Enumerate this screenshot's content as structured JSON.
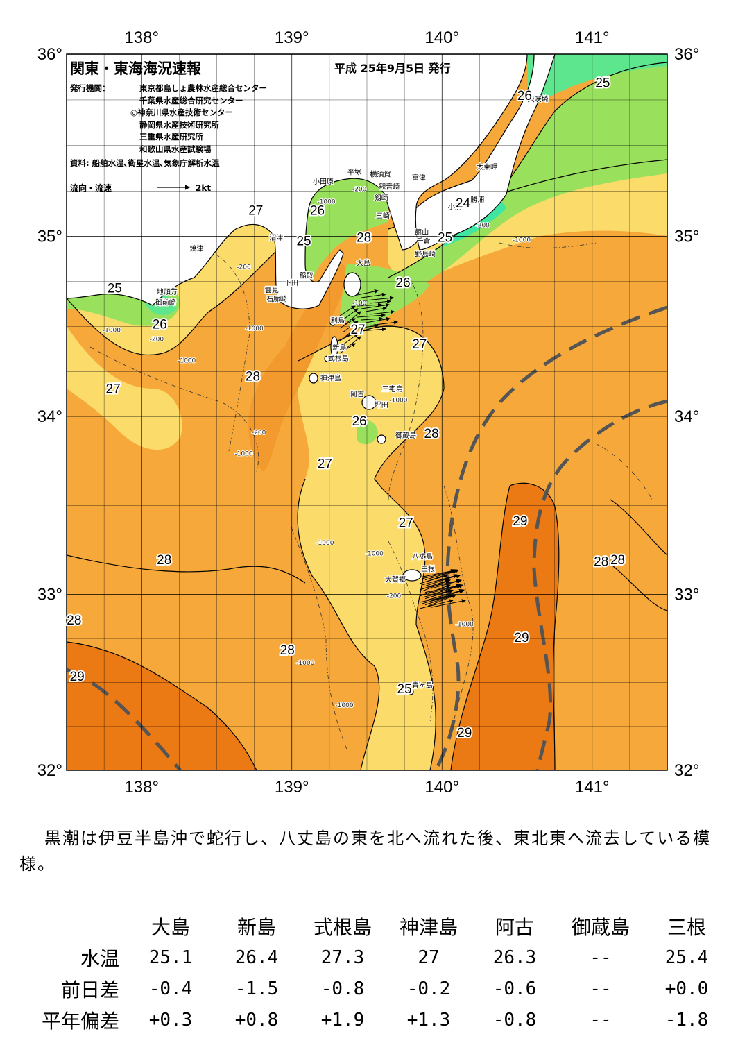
{
  "map": {
    "title": "関東・東海海況速報",
    "date": "平成 25年9月5日 発行",
    "issuers_label": "発行機関：",
    "issuers": [
      "東京都島しょ農林水産総合センター",
      "千葉県水産総合研究センター",
      "◎神奈川県水産技術センター",
      "静岡県水産技術研究所",
      "三重県水産研究所",
      "和歌山県水産試験場"
    ],
    "source": "資料: 船舶水温､衛星水温､気象庁解析水温",
    "legend_label": "流向・流速",
    "legend_scale": "2kt",
    "lon_ticks": [
      "138°",
      "139°",
      "140°",
      "141°"
    ],
    "lat_ticks": [
      "36°",
      "35°",
      "34°",
      "33°",
      "32°"
    ],
    "lon_range": [
      137.5,
      141.5
    ],
    "lat_range": [
      32.0,
      36.0
    ],
    "temp_colors": {
      "24": "#3fe6a2",
      "25": "#5ee68f",
      "26": "#99e05c",
      "27": "#fbdc6a",
      "28": "#f6a93a",
      "29": "#ec7a14",
      "land": "#ffffff",
      "kuroshio_axis": "#555555"
    },
    "isotherm_labels": [
      {
        "t": "25",
        "lon": 141.07,
        "lat": 35.82
      },
      {
        "t": "26",
        "lon": 140.55,
        "lat": 35.75
      },
      {
        "t": "24",
        "lon": 140.14,
        "lat": 35.16
      },
      {
        "t": "25",
        "lon": 140.02,
        "lat": 34.97
      },
      {
        "t": "28",
        "lon": 139.48,
        "lat": 34.97
      },
      {
        "t": "26",
        "lon": 139.74,
        "lat": 34.72
      },
      {
        "t": "27",
        "lon": 138.76,
        "lat": 35.12
      },
      {
        "t": "26",
        "lon": 139.17,
        "lat": 35.12
      },
      {
        "t": "25",
        "lon": 139.08,
        "lat": 34.95
      },
      {
        "t": "25",
        "lon": 137.82,
        "lat": 34.69
      },
      {
        "t": "26",
        "lon": 138.12,
        "lat": 34.49
      },
      {
        "t": "27",
        "lon": 139.44,
        "lat": 34.46
      },
      {
        "t": "27",
        "lon": 139.85,
        "lat": 34.38
      },
      {
        "t": "28",
        "lon": 138.74,
        "lat": 34.2
      },
      {
        "t": "27",
        "lon": 137.81,
        "lat": 34.13
      },
      {
        "t": "26",
        "lon": 139.45,
        "lat": 33.95
      },
      {
        "t": "28",
        "lon": 139.93,
        "lat": 33.88
      },
      {
        "t": "27",
        "lon": 139.22,
        "lat": 33.71
      },
      {
        "t": "27",
        "lon": 139.76,
        "lat": 33.38
      },
      {
        "t": "29",
        "lon": 140.52,
        "lat": 33.39
      },
      {
        "t": "28",
        "lon": 138.15,
        "lat": 33.17
      },
      {
        "t": "28",
        "lon": 141.06,
        "lat": 33.16
      },
      {
        "t": "28",
        "lon": 141.17,
        "lat": 33.17
      },
      {
        "t": "28",
        "lon": 137.55,
        "lat": 32.83
      },
      {
        "t": "29",
        "lon": 140.53,
        "lat": 32.73
      },
      {
        "t": "28",
        "lon": 138.97,
        "lat": 32.66
      },
      {
        "t": "29",
        "lon": 137.57,
        "lat": 32.51
      },
      {
        "t": "25",
        "lon": 139.75,
        "lat": 32.44
      },
      {
        "t": "29",
        "lon": 140.15,
        "lat": 32.19
      }
    ],
    "place_names": [
      {
        "name": "犬吠埼",
        "lon": 140.57,
        "lat": 35.74
      },
      {
        "name": "太東岬",
        "lon": 140.23,
        "lat": 35.37
      },
      {
        "name": "勝浦",
        "lon": 140.19,
        "lat": 35.19
      },
      {
        "name": "小湊",
        "lon": 140.04,
        "lat": 35.15
      },
      {
        "name": "富津",
        "lon": 139.8,
        "lat": 35.31
      },
      {
        "name": "横須賀",
        "lon": 139.52,
        "lat": 35.33
      },
      {
        "name": "観音崎",
        "lon": 139.58,
        "lat": 35.26
      },
      {
        "name": "剱崎",
        "lon": 139.55,
        "lat": 35.2
      },
      {
        "name": "三崎",
        "lon": 139.56,
        "lat": 35.1
      },
      {
        "name": "平塚",
        "lon": 139.37,
        "lat": 35.34
      },
      {
        "name": "小田原",
        "lon": 139.14,
        "lat": 35.29
      },
      {
        "name": "館山",
        "lon": 139.82,
        "lat": 35.01
      },
      {
        "name": "千倉",
        "lon": 139.83,
        "lat": 34.96
      },
      {
        "name": "野島崎",
        "lon": 139.82,
        "lat": 34.89
      },
      {
        "name": "沼津",
        "lon": 138.85,
        "lat": 34.98
      },
      {
        "name": "焼津",
        "lon": 138.32,
        "lat": 34.92
      },
      {
        "name": "稲取",
        "lon": 139.05,
        "lat": 34.77
      },
      {
        "name": "下田",
        "lon": 138.95,
        "lat": 34.73
      },
      {
        "name": "雲見",
        "lon": 138.82,
        "lat": 34.69
      },
      {
        "name": "石廊崎",
        "lon": 138.83,
        "lat": 34.64
      },
      {
        "name": "地頭方",
        "lon": 138.1,
        "lat": 34.68
      },
      {
        "name": "御前崎",
        "lon": 138.09,
        "lat": 34.62
      },
      {
        "name": "大島",
        "lon": 139.43,
        "lat": 34.84
      },
      {
        "name": "利島",
        "lon": 139.26,
        "lat": 34.52
      },
      {
        "name": "新島",
        "lon": 139.27,
        "lat": 34.37
      },
      {
        "name": "式根島",
        "lon": 139.24,
        "lat": 34.31
      },
      {
        "name": "神津島",
        "lon": 139.19,
        "lat": 34.2
      },
      {
        "name": "阿古",
        "lon": 139.39,
        "lat": 34.11
      },
      {
        "name": "三宅島",
        "lon": 139.6,
        "lat": 34.14
      },
      {
        "name": "坪田",
        "lon": 139.55,
        "lat": 34.05
      },
      {
        "name": "御蔵島",
        "lon": 139.69,
        "lat": 33.88
      },
      {
        "name": "八丈島",
        "lon": 139.8,
        "lat": 33.2
      },
      {
        "name": "三根",
        "lon": 139.86,
        "lat": 33.13
      },
      {
        "name": "大賀郷",
        "lon": 139.62,
        "lat": 33.07
      },
      {
        "name": "青ヶ島",
        "lon": 139.8,
        "lat": 32.47
      }
    ],
    "depth_labels": [
      {
        "t": "-200",
        "lon": 139.45,
        "lat": 35.25
      },
      {
        "t": "-1000",
        "lon": 139.23,
        "lat": 35.18
      },
      {
        "t": "-200",
        "lon": 140.27,
        "lat": 35.05
      },
      {
        "t": "-1000",
        "lon": 140.53,
        "lat": 34.97
      },
      {
        "t": "-200",
        "lon": 138.68,
        "lat": 34.82
      },
      {
        "t": "-200",
        "lon": 138.1,
        "lat": 34.42
      },
      {
        "t": "-1000",
        "lon": 137.8,
        "lat": 34.47
      },
      {
        "t": "-1000",
        "lon": 138.3,
        "lat": 34.3
      },
      {
        "t": "-1000",
        "lon": 138.75,
        "lat": 34.48
      },
      {
        "t": "-200",
        "lon": 138.78,
        "lat": 33.9
      },
      {
        "t": "-1000",
        "lon": 138.68,
        "lat": 33.78
      },
      {
        "t": "-1000",
        "lon": 139.71,
        "lat": 34.08
      },
      {
        "t": "-1000",
        "lon": 139.22,
        "lat": 33.28
      },
      {
        "t": "-1000",
        "lon": 139.55,
        "lat": 33.22
      },
      {
        "t": "-200",
        "lon": 139.68,
        "lat": 32.98
      },
      {
        "t": "-1000",
        "lon": 140.15,
        "lat": 32.82
      },
      {
        "t": "-1000",
        "lon": 139.09,
        "lat": 32.6
      },
      {
        "t": "-1000",
        "lon": 139.35,
        "lat": 32.36
      },
      {
        "t": "-100",
        "lon": 139.45,
        "lat": 34.62
      }
    ]
  },
  "summary": "黒潮は伊豆半島沖で蛇行し、八丈島の東を北へ流れた後、東北東へ流去している模様。",
  "table": {
    "stations": [
      "大島",
      "新島",
      "式根島",
      "神津島",
      "阿古",
      "御蔵島",
      "三根"
    ],
    "rows": [
      {
        "label": "水温",
        "values": [
          "25.1",
          "26.4",
          "27.3",
          "27",
          "26.3",
          "--",
          "25.4"
        ]
      },
      {
        "label": "前日差",
        "values": [
          "-0.4",
          "-1.5",
          "-0.8",
          "-0.2",
          "-0.6",
          "--",
          "+0.0"
        ]
      },
      {
        "label": "平年偏差",
        "values": [
          "+0.3",
          "+0.8",
          "+1.9",
          "+1.3",
          "-0.8",
          "--",
          "-1.8"
        ]
      }
    ]
  }
}
